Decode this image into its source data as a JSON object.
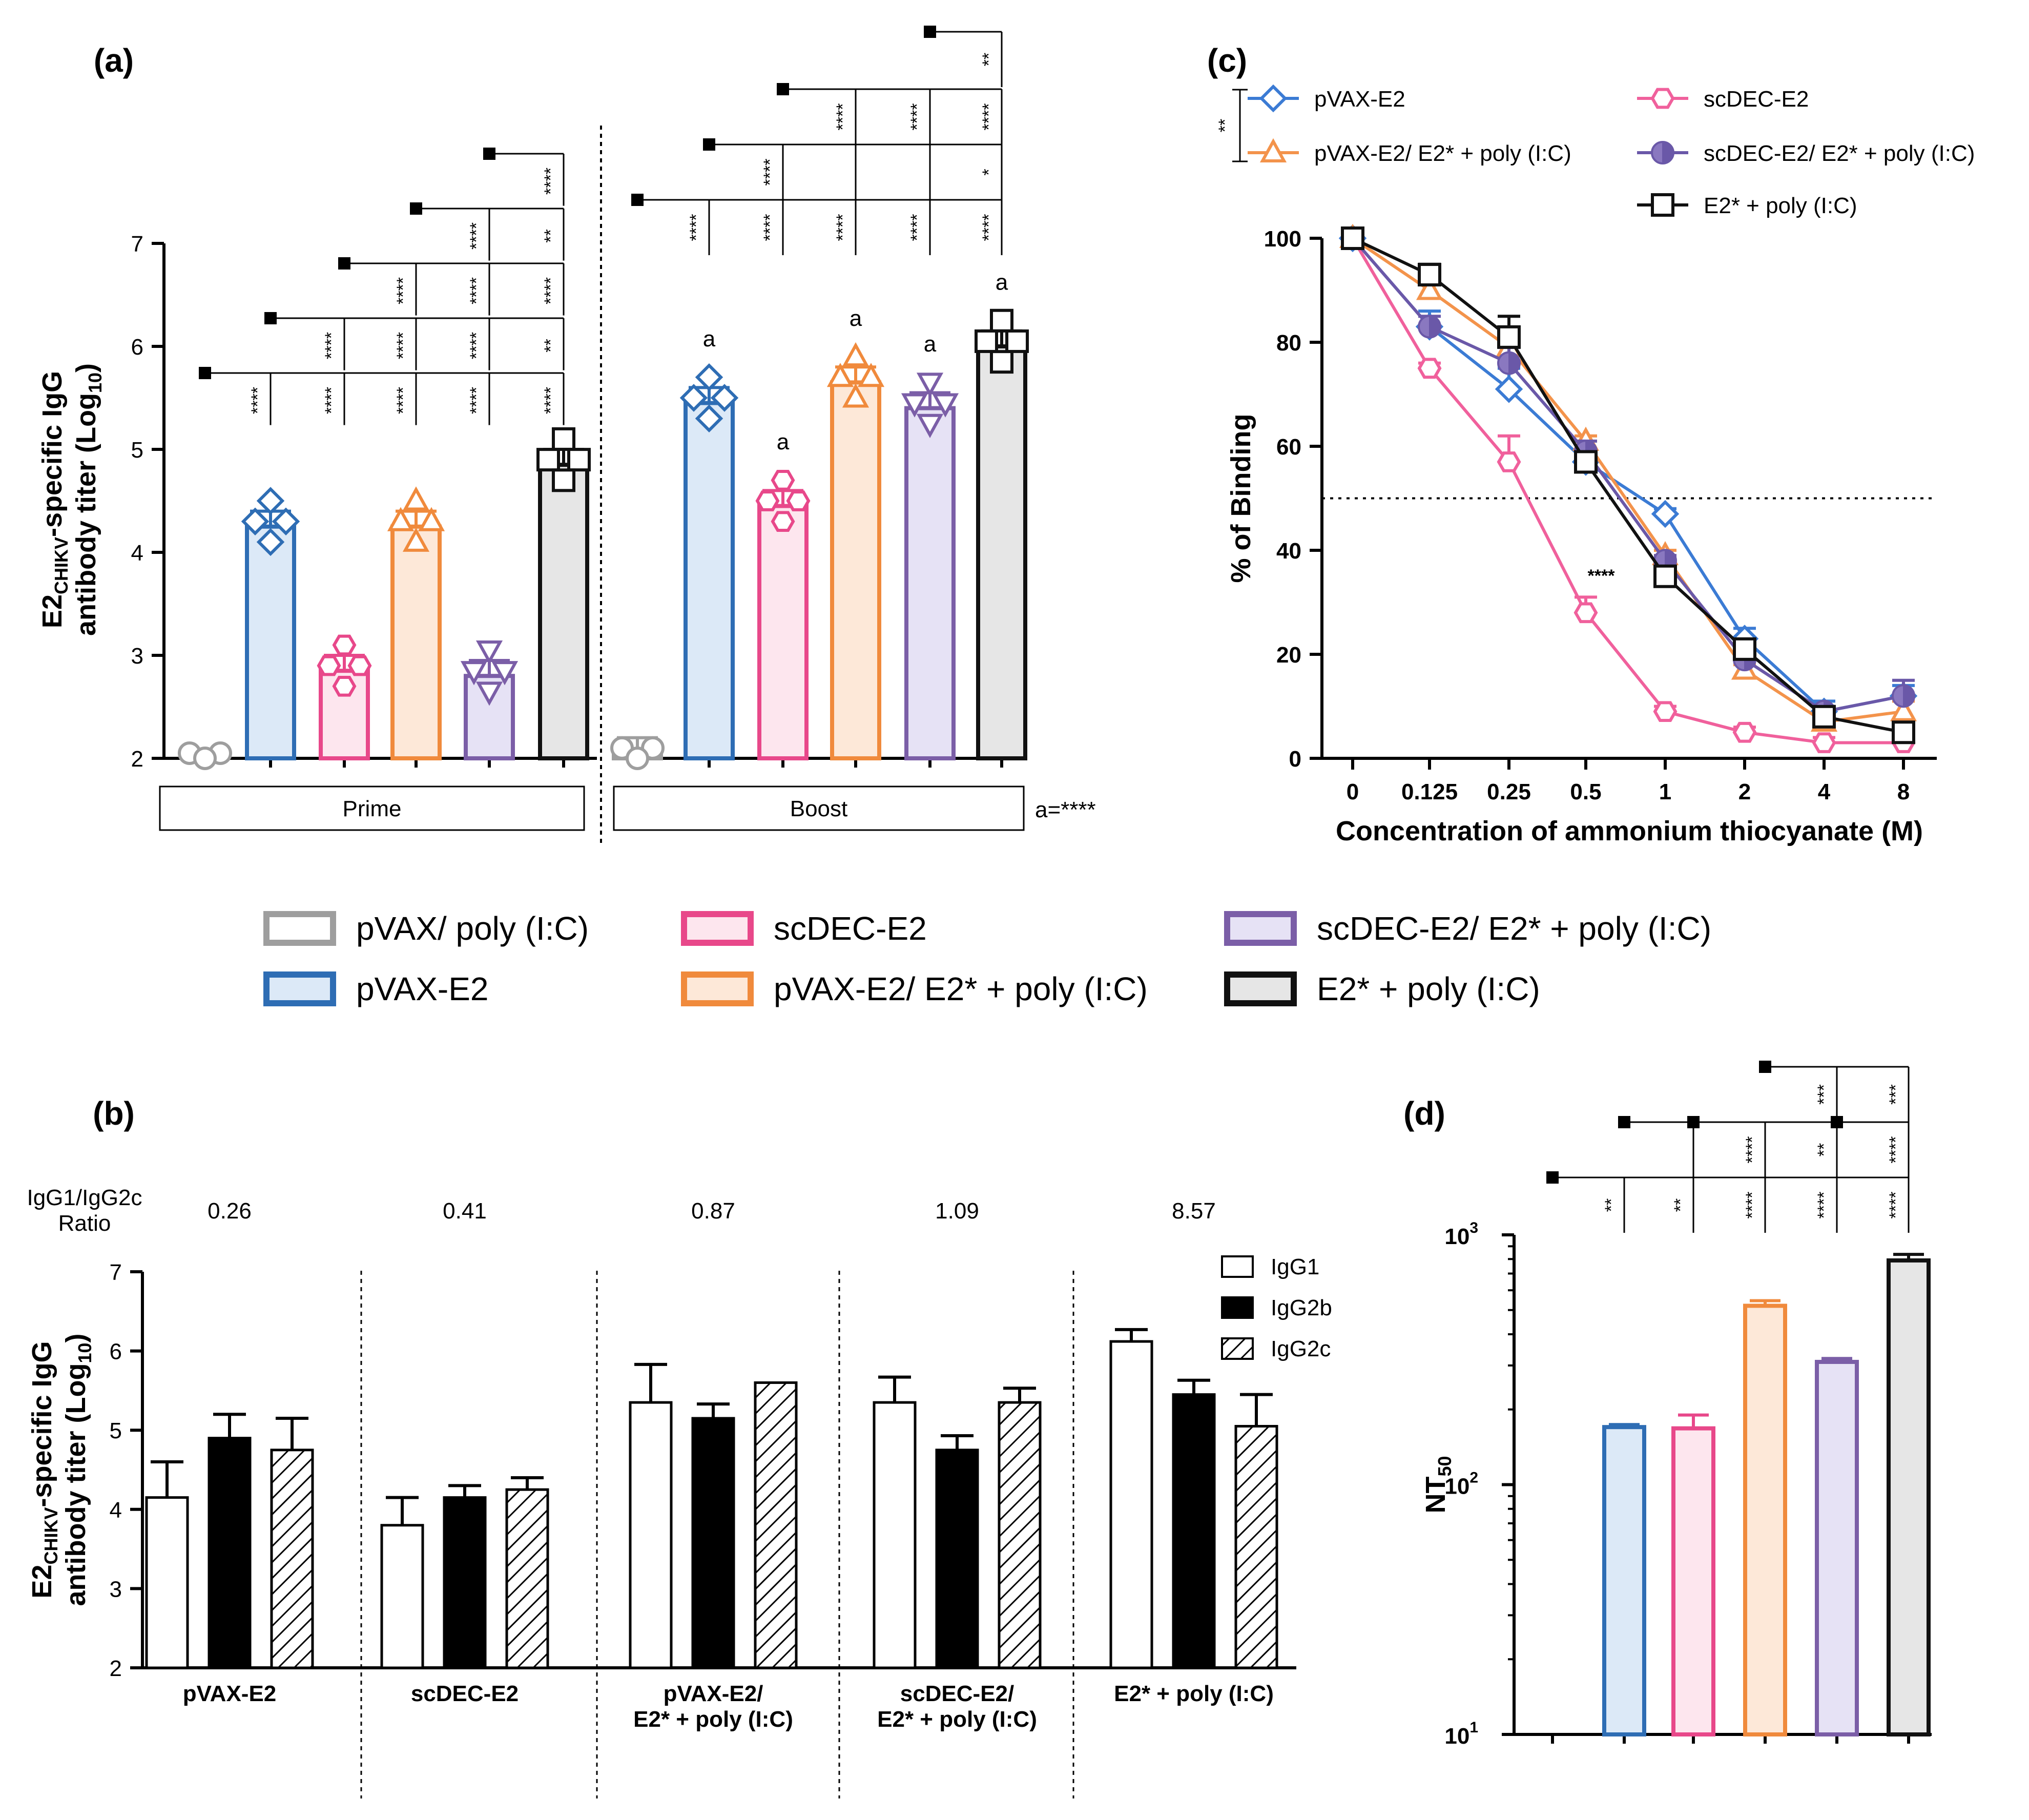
{
  "panel_labels": {
    "a": "(a)",
    "b": "(b)",
    "c": "(c)",
    "d": "(d)"
  },
  "groups": [
    {
      "key": "pvax_poly",
      "label": "pVAX/ poly (I:C)",
      "color": "#9e9e9e",
      "fill": "#ffffff",
      "marker": "circle"
    },
    {
      "key": "pvax_e2",
      "label": "pVAX-E2",
      "color": "#2e6db4",
      "fill": "#dce9f7",
      "marker": "diamond"
    },
    {
      "key": "scdec_e2",
      "label": "scDEC-E2",
      "color": "#e8488a",
      "fill": "#fde6ee",
      "marker": "hexagon"
    },
    {
      "key": "pvax_e2_prot",
      "label": "pVAX-E2/ E2* + poly (I:C)",
      "color": "#f08a3c",
      "fill": "#fde8d8",
      "marker": "triangle"
    },
    {
      "key": "scdec_e2_prot",
      "label": "scDEC-E2/ E2* + poly (I:C)",
      "color": "#7b5ea7",
      "fill": "#e6e2f5",
      "marker": "invtriangle"
    },
    {
      "key": "e2_prot",
      "label": "E2* + poly (I:C)",
      "color": "#111111",
      "fill": "#e6e6e6",
      "marker": "square"
    }
  ],
  "chart_data": [
    {
      "id": "a",
      "type": "bar",
      "title": "(a)",
      "ylabel": "E2CHIKV-specific IgG antibody titer (Log10)",
      "ylabel_parts": {
        "main": "E2",
        "sub": "CHIKV",
        "rest": "-specific IgG",
        "line2": "antibody titer (Log",
        "sub2": "10",
        "close": ")"
      },
      "ylim": [
        2,
        7
      ],
      "yticks": [
        "2",
        "3",
        "4",
        "5",
        "6",
        "7"
      ],
      "phases": [
        "Prime",
        "Boost"
      ],
      "series": [
        {
          "name": "Prime",
          "values": [
            2.0,
            4.25,
            2.85,
            4.25,
            2.8,
            4.85
          ]
        },
        {
          "name": "Boost",
          "values": [
            2.05,
            5.45,
            4.45,
            5.65,
            5.4,
            6.0
          ]
        }
      ],
      "boost_letter": "a",
      "annotation": "a=****",
      "sig_prime": [
        {
          "from": 0,
          "labels": [
            "****",
            "****",
            "****",
            "****",
            "****"
          ]
        },
        {
          "from": 1,
          "labels": [
            "****",
            "****",
            "****",
            "**"
          ]
        },
        {
          "from": 2,
          "labels": [
            "****",
            "****",
            "****"
          ]
        },
        {
          "from": 3,
          "labels": [
            "****",
            "**"
          ]
        },
        {
          "from": 4,
          "labels": [
            "****"
          ]
        }
      ],
      "sig_boost": [
        {
          "from": 0,
          "labels": [
            "****",
            "****",
            "****",
            "****",
            "****"
          ]
        },
        {
          "from": 1,
          "labels": [
            "****",
            "",
            "",
            "*"
          ]
        },
        {
          "from": 2,
          "labels": [
            "****",
            "****",
            "****"
          ]
        },
        {
          "from": 4,
          "labels": [
            "**"
          ]
        }
      ]
    },
    {
      "id": "b",
      "type": "bar",
      "title": "(b)",
      "ylabel": "E2CHIKV-specific IgG antibody titer (Log10)",
      "ylim": [
        2,
        7
      ],
      "yticks": [
        "2",
        "3",
        "4",
        "5",
        "6",
        "7"
      ],
      "ratio_label": [
        "IgG1/IgG2c",
        "Ratio"
      ],
      "categories": [
        [
          "pVAX-E2"
        ],
        [
          "scDEC-E2"
        ],
        [
          "pVAX-E2/",
          "E2* + poly (I:C)"
        ],
        [
          "scDEC-E2/",
          "E2* + poly (I:C)"
        ],
        [
          "E2* + poly (I:C)"
        ]
      ],
      "ratios": [
        "0.26",
        "0.41",
        "0.87",
        "1.09",
        "8.57"
      ],
      "series": [
        {
          "name": "IgG1",
          "values": [
            4.15,
            3.8,
            5.35,
            5.35,
            6.12
          ],
          "errors": [
            0.45,
            0.35,
            0.48,
            0.32,
            0.15
          ]
        },
        {
          "name": "IgG2b",
          "values": [
            4.9,
            4.15,
            5.15,
            4.75,
            5.45
          ],
          "errors": [
            0.3,
            0.15,
            0.18,
            0.18,
            0.18
          ]
        },
        {
          "name": "IgG2c",
          "values": [
            4.75,
            4.25,
            5.6,
            5.35,
            5.05
          ],
          "errors": [
            0.4,
            0.15,
            0.0,
            0.18,
            0.4
          ]
        }
      ]
    },
    {
      "id": "c",
      "type": "line",
      "title": "(c)",
      "xlabel": "Concentration of ammonium thiocyanate (M)",
      "ylabel": "% of  Binding",
      "x": [
        "0",
        "0.125",
        "0.25",
        "0.5",
        "1",
        "2",
        "4",
        "8"
      ],
      "ylim": [
        0,
        100
      ],
      "yticks": [
        "0",
        "20",
        "40",
        "60",
        "80",
        "100"
      ],
      "reference_line": 50,
      "annotation": "****",
      "legend_sig": "**",
      "series": [
        {
          "name": "pVAX-E2",
          "key": "pvax_e2",
          "values": [
            100,
            83,
            71,
            57,
            47,
            23,
            9,
            12
          ],
          "errors": [
            0,
            3,
            4,
            2,
            1,
            2,
            2,
            2
          ]
        },
        {
          "name": "scDEC-E2",
          "key": "scdec_e2",
          "values": [
            100,
            75,
            57,
            28,
            9,
            5,
            3,
            3
          ],
          "errors": [
            0,
            1,
            5,
            3,
            1,
            1,
            1,
            1
          ]
        },
        {
          "name": "pVAX-E2/ E2* + poly (I:C)",
          "key": "pvax_e2_prot",
          "values": [
            100,
            90,
            79,
            61,
            39,
            17,
            7,
            9
          ],
          "errors": [
            0,
            2,
            2,
            1,
            1,
            1,
            1,
            2
          ]
        },
        {
          "name": "scDEC-E2/ E2* + poly (I:C)",
          "key": "scdec_e2_prot",
          "values": [
            100,
            83,
            76,
            59,
            38,
            19,
            9,
            12
          ],
          "errors": [
            0,
            2,
            3,
            2,
            1,
            1,
            1,
            3
          ]
        },
        {
          "name": "E2* + poly (I:C)",
          "key": "e2_prot",
          "values": [
            100,
            93,
            81,
            57,
            35,
            21,
            8,
            5
          ],
          "errors": [
            0,
            2,
            4,
            1,
            1,
            1,
            1,
            1
          ]
        }
      ]
    },
    {
      "id": "d",
      "type": "bar",
      "title": "(d)",
      "ylabel": "NT50",
      "scale": "log",
      "ylim": [
        10,
        1000
      ],
      "yticks": [
        "10",
        "10",
        "10"
      ],
      "ytick_exp": [
        "1",
        "2",
        "3"
      ],
      "values": [
        0,
        170,
        168,
        520,
        310,
        790
      ],
      "errors": [
        0,
        4,
        22,
        25,
        10,
        45
      ],
      "sig": [
        {
          "from": 0,
          "labels": [
            "**",
            "**",
            "****",
            "****",
            "****"
          ]
        },
        {
          "from": 1,
          "labels": [
            "",
            "****",
            "**",
            "****"
          ]
        },
        {
          "from": 3,
          "labels": [
            "***",
            "***"
          ]
        }
      ]
    }
  ]
}
